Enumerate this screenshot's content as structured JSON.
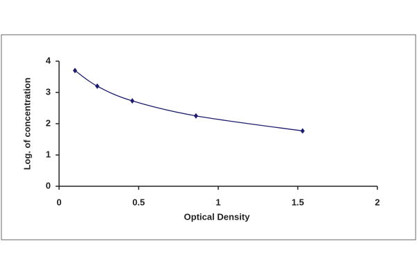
{
  "chart_data": {
    "type": "line",
    "x_label": "Optical Density",
    "y_label": "Log. of concentration",
    "x": [
      0.1,
      0.24,
      0.46,
      0.86,
      1.53
    ],
    "series": [
      {
        "color": "#1c1c6e",
        "values": [
          3.7,
          3.2,
          2.73,
          2.25,
          1.77
        ]
      }
    ],
    "xlim": [
      0,
      2
    ],
    "xticks": [
      0,
      0.5,
      1,
      1.5,
      2
    ],
    "ylim": [
      0,
      4
    ],
    "yticks": [
      0,
      1,
      2,
      3,
      4
    ],
    "smooth": true,
    "grid": false
  }
}
